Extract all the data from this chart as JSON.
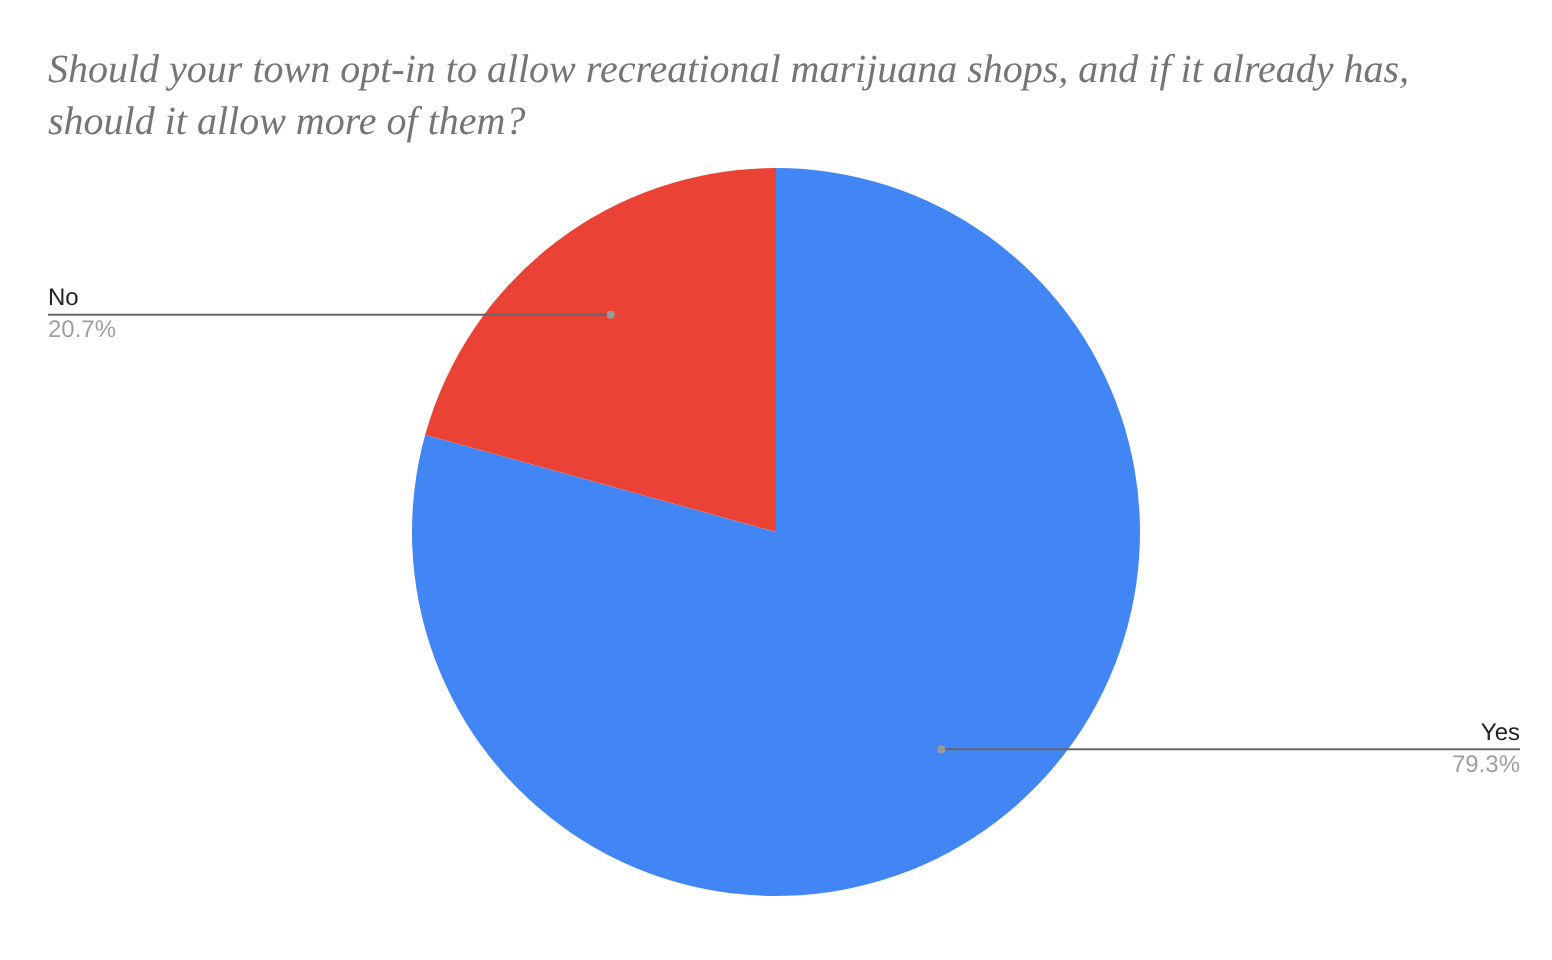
{
  "chart_data": {
    "type": "pie",
    "title": "Should your town opt-in to allow recreational marijuana shops, and if it already has, should it allow more of them?",
    "categories": [
      "Yes",
      "No"
    ],
    "values": [
      79.3,
      20.7
    ],
    "colors": [
      "#4285f4",
      "#ea4335"
    ],
    "value_labels": [
      "79.3%",
      "20.7%"
    ],
    "legend": false
  }
}
